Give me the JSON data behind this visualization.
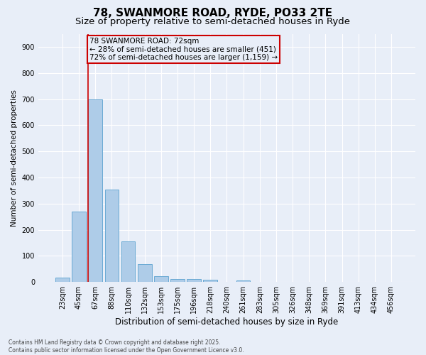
{
  "title": "78, SWANMORE ROAD, RYDE, PO33 2TE",
  "subtitle": "Size of property relative to semi-detached houses in Ryde",
  "xlabel": "Distribution of semi-detached houses by size in Ryde",
  "ylabel": "Number of semi-detached properties",
  "bar_color": "#aecce8",
  "bar_edge_color": "#6aaad4",
  "background_color": "#e8eef8",
  "grid_color": "#ffffff",
  "annotation_text_line1": "78 SWANMORE ROAD: 72sqm",
  "annotation_text_line2": "← 28% of semi-detached houses are smaller (451)",
  "annotation_text_line3": "72% of semi-detached houses are larger (1,159) →",
  "categories": [
    "23sqm",
    "45sqm",
    "67sqm",
    "88sqm",
    "110sqm",
    "132sqm",
    "153sqm",
    "175sqm",
    "196sqm",
    "218sqm",
    "240sqm",
    "261sqm",
    "283sqm",
    "305sqm",
    "326sqm",
    "348sqm",
    "369sqm",
    "391sqm",
    "413sqm",
    "434sqm",
    "456sqm"
  ],
  "values": [
    18,
    270,
    700,
    355,
    155,
    68,
    22,
    12,
    12,
    10,
    0,
    6,
    0,
    0,
    0,
    0,
    0,
    0,
    0,
    0,
    0
  ],
  "ylim": [
    0,
    950
  ],
  "yticks": [
    0,
    100,
    200,
    300,
    400,
    500,
    600,
    700,
    800,
    900
  ],
  "footnote": "Contains HM Land Registry data © Crown copyright and database right 2025.\nContains public sector information licensed under the Open Government Licence v3.0.",
  "title_fontsize": 11,
  "subtitle_fontsize": 9.5,
  "xlabel_fontsize": 8.5,
  "ylabel_fontsize": 7.5,
  "tick_fontsize": 7,
  "annotation_fontsize": 7.5,
  "footnote_fontsize": 5.5,
  "vline_bin_index": 2
}
